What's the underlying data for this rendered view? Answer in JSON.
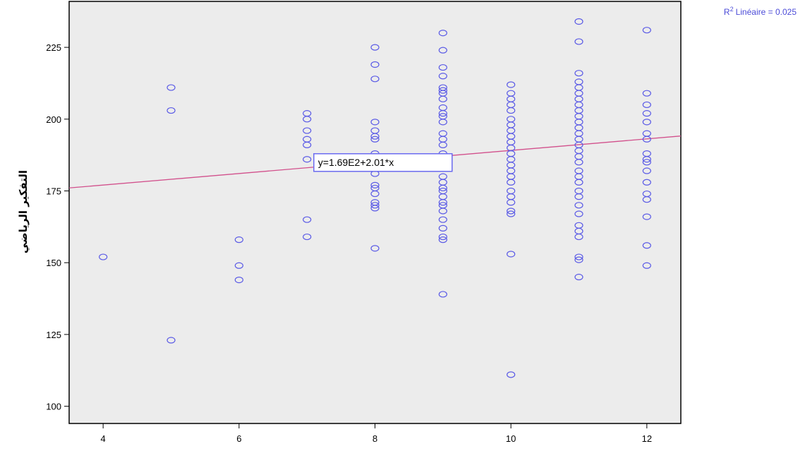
{
  "chart_data": {
    "type": "scatter",
    "title": "",
    "xlabel": "",
    "ylabel": "التفكير الرياضي",
    "xlim": [
      3.5,
      12.5
    ],
    "ylim": [
      94,
      241
    ],
    "x_ticks": [
      4,
      6,
      8,
      10,
      12
    ],
    "y_ticks": [
      100,
      125,
      150,
      175,
      200,
      225
    ],
    "grid": false,
    "r2_label": "Linéaire = 0.025",
    "r2_prefix": "R",
    "r2_sup": "2",
    "fit_equation": "y=1.69E2+2.01*x",
    "fit": {
      "intercept": 169,
      "slope": 2.01,
      "equation_anchor_x": 7.1,
      "equation_anchor_y": 185
    },
    "colors": {
      "plot_bg": "#ececec",
      "marker": "#5a5ae6",
      "fit_line": "#d2508c",
      "r2_text": "#4c4cd8"
    },
    "series": [
      {
        "points": [
          [
            4,
            152
          ],
          [
            5,
            211
          ],
          [
            5,
            203
          ],
          [
            5,
            123
          ],
          [
            6,
            158
          ],
          [
            6,
            149
          ],
          [
            6,
            144
          ],
          [
            7,
            202
          ],
          [
            7,
            200
          ],
          [
            7,
            196
          ],
          [
            7,
            193
          ],
          [
            7,
            191
          ],
          [
            7,
            186
          ],
          [
            7,
            165
          ],
          [
            7,
            159
          ],
          [
            8,
            225
          ],
          [
            8,
            219
          ],
          [
            8,
            214
          ],
          [
            8,
            199
          ],
          [
            8,
            196
          ],
          [
            8,
            194
          ],
          [
            8,
            193
          ],
          [
            8,
            188
          ],
          [
            8,
            186
          ],
          [
            8,
            181
          ],
          [
            8,
            177
          ],
          [
            8,
            176
          ],
          [
            8,
            174
          ],
          [
            8,
            171
          ],
          [
            8,
            170
          ],
          [
            8,
            169
          ],
          [
            8,
            155
          ],
          [
            9,
            230
          ],
          [
            9,
            224
          ],
          [
            9,
            218
          ],
          [
            9,
            215
          ],
          [
            9,
            211
          ],
          [
            9,
            210
          ],
          [
            9,
            209
          ],
          [
            9,
            207
          ],
          [
            9,
            204
          ],
          [
            9,
            202
          ],
          [
            9,
            201
          ],
          [
            9,
            199
          ],
          [
            9,
            195
          ],
          [
            9,
            193
          ],
          [
            9,
            191
          ],
          [
            9,
            188
          ],
          [
            9,
            186
          ],
          [
            9,
            183
          ],
          [
            9,
            180
          ],
          [
            9,
            178
          ],
          [
            9,
            176
          ],
          [
            9,
            175
          ],
          [
            9,
            173
          ],
          [
            9,
            171
          ],
          [
            9,
            170
          ],
          [
            9,
            168
          ],
          [
            9,
            165
          ],
          [
            9,
            162
          ],
          [
            9,
            159
          ],
          [
            9,
            158
          ],
          [
            9,
            139
          ],
          [
            10,
            212
          ],
          [
            10,
            209
          ],
          [
            10,
            207
          ],
          [
            10,
            205
          ],
          [
            10,
            203
          ],
          [
            10,
            200
          ],
          [
            10,
            198
          ],
          [
            10,
            196
          ],
          [
            10,
            194
          ],
          [
            10,
            192
          ],
          [
            10,
            190
          ],
          [
            10,
            188
          ],
          [
            10,
            186
          ],
          [
            10,
            184
          ],
          [
            10,
            182
          ],
          [
            10,
            180
          ],
          [
            10,
            178
          ],
          [
            10,
            175
          ],
          [
            10,
            173
          ],
          [
            10,
            171
          ],
          [
            10,
            168
          ],
          [
            10,
            167
          ],
          [
            10,
            153
          ],
          [
            10,
            111
          ],
          [
            11,
            234
          ],
          [
            11,
            227
          ],
          [
            11,
            216
          ],
          [
            11,
            213
          ],
          [
            11,
            211
          ],
          [
            11,
            209
          ],
          [
            11,
            207
          ],
          [
            11,
            205
          ],
          [
            11,
            203
          ],
          [
            11,
            201
          ],
          [
            11,
            199
          ],
          [
            11,
            197
          ],
          [
            11,
            195
          ],
          [
            11,
            193
          ],
          [
            11,
            191
          ],
          [
            11,
            189
          ],
          [
            11,
            187
          ],
          [
            11,
            185
          ],
          [
            11,
            182
          ],
          [
            11,
            180
          ],
          [
            11,
            178
          ],
          [
            11,
            175
          ],
          [
            11,
            173
          ],
          [
            11,
            170
          ],
          [
            11,
            167
          ],
          [
            11,
            163
          ],
          [
            11,
            161
          ],
          [
            11,
            159
          ],
          [
            11,
            152
          ],
          [
            11,
            151
          ],
          [
            11,
            145
          ],
          [
            12,
            231
          ],
          [
            12,
            209
          ],
          [
            12,
            205
          ],
          [
            12,
            202
          ],
          [
            12,
            199
          ],
          [
            12,
            195
          ],
          [
            12,
            193
          ],
          [
            12,
            188
          ],
          [
            12,
            186
          ],
          [
            12,
            185
          ],
          [
            12,
            182
          ],
          [
            12,
            178
          ],
          [
            12,
            174
          ],
          [
            12,
            172
          ],
          [
            12,
            166
          ],
          [
            12,
            156
          ],
          [
            12,
            149
          ]
        ]
      }
    ]
  }
}
